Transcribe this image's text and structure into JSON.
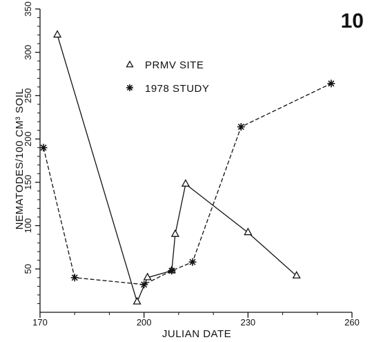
{
  "chart_data": {
    "type": "line",
    "panel_label": "10",
    "xlabel": "JULIAN DATE",
    "ylabel": "NEMATODES/100 CM³ SOIL",
    "xlim": [
      170,
      260
    ],
    "ylim": [
      0,
      350
    ],
    "x_ticks": [
      170,
      200,
      230,
      260
    ],
    "x_tick_labels": [
      "170",
      "200",
      "230",
      "260"
    ],
    "x_minor_ticks": [
      180,
      190,
      210,
      220,
      240,
      250
    ],
    "y_ticks": [
      50,
      100,
      150,
      200,
      250,
      300,
      350
    ],
    "y_tick_labels": [
      "50",
      "100",
      "150",
      "200",
      "250",
      "300",
      "350"
    ],
    "y_minor_ticks": [
      10,
      20,
      30,
      40,
      60,
      70,
      80,
      90,
      110,
      120,
      130,
      140,
      160,
      170,
      180,
      190,
      210,
      220,
      230,
      240,
      260,
      270,
      280,
      290,
      310,
      320,
      330,
      340
    ],
    "grid": false,
    "legend_position": "upper-center",
    "series": [
      {
        "name": "PRMV SITE",
        "marker": "triangle",
        "line_style": "solid",
        "x": [
          175,
          198,
          201,
          208,
          209,
          212,
          230,
          244
        ],
        "y": [
          320,
          12,
          40,
          48,
          90,
          148,
          92,
          42
        ]
      },
      {
        "name": "1978 STUDY",
        "marker": "asterisk",
        "line_style": "dashed",
        "x": [
          171,
          180,
          200,
          208,
          214,
          228,
          254
        ],
        "y": [
          190,
          40,
          32,
          48,
          58,
          214,
          264
        ]
      }
    ]
  }
}
